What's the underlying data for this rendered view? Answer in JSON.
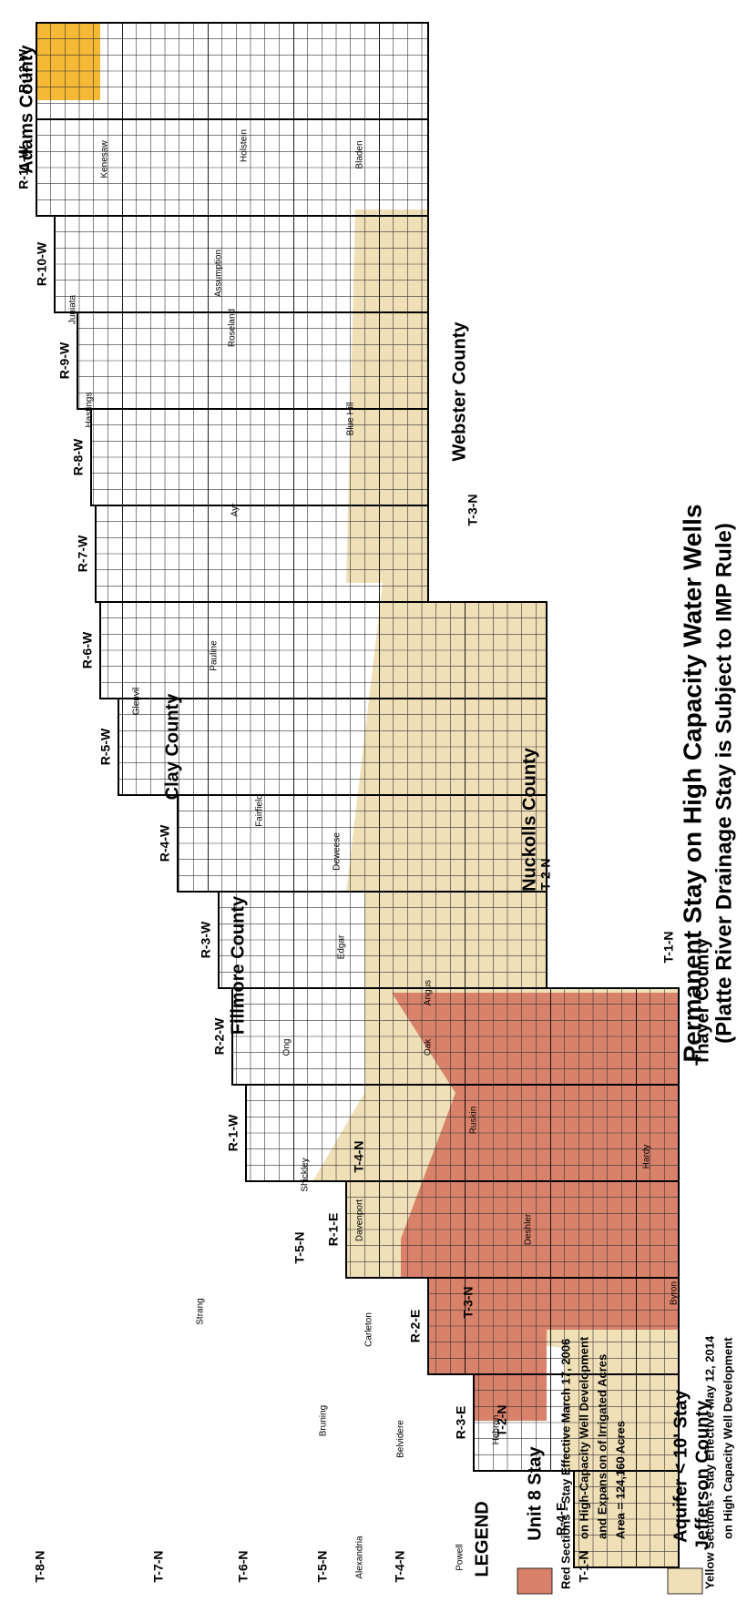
{
  "title": "Permanent Stay on High Capacity Water Wells",
  "subtitle": "(Platte River Drainage Stay is Subject to IMP Rule)",
  "counties": [
    "Adams County",
    "Clay County",
    "Fillmore County",
    "Webster County",
    "Nuckolls County",
    "Thayer County",
    "Jefferson County"
  ],
  "ranges": [
    "R-12-W",
    "R-11-W",
    "R-10-W",
    "R-9-W",
    "R-8-W",
    "R-7-W",
    "R-6-W",
    "R-5-W",
    "R-4-W",
    "R-3-W",
    "R-2-W",
    "R-1-W",
    "R-1-E",
    "R-2-E",
    "R-3-E",
    "R-4-E"
  ],
  "townships": [
    "T-8-N",
    "T-7-N",
    "T-6-N",
    "T-5-N",
    "T-4-N",
    "T-3-N",
    "T-2-N",
    "T-1-N",
    "T-5-N",
    "T-4-N",
    "T-3-N",
    "T-2-N",
    "T-1-N"
  ],
  "towns": [
    "Kenesaw",
    "Juniata",
    "Hastings",
    "Holstein",
    "Roseland",
    "Assumption",
    "Ayr",
    "Pauline",
    "Glenvil",
    "Blue Hill",
    "Bladen",
    "Fairfield",
    "Deweese",
    "Edgar",
    "Angus",
    "Ong",
    "Oak",
    "Ruskin",
    "Shickley",
    "Davenport",
    "Carleton",
    "Deshler",
    "Byron",
    "Hardy",
    "Strang",
    "Bruning",
    "Belvidere",
    "Hebron",
    "Alexandria",
    "Powell"
  ],
  "legend": {
    "heading": "LEGEND",
    "items": [
      {
        "title": "Unit 8 Stay",
        "lines": [
          "Red Sections - Stay Effective March 17, 2006",
          "on High-Capacity Well Development",
          "and Expansion of Irrigated Acres",
          "Area = 124,160 Acres"
        ]
      },
      {
        "title": "Aquifer < 10' Stay",
        "lines": [
          "Yellow Sections - Stay Effective May 12, 2014",
          "on High Capacity Well Development"
        ]
      }
    ]
  }
}
